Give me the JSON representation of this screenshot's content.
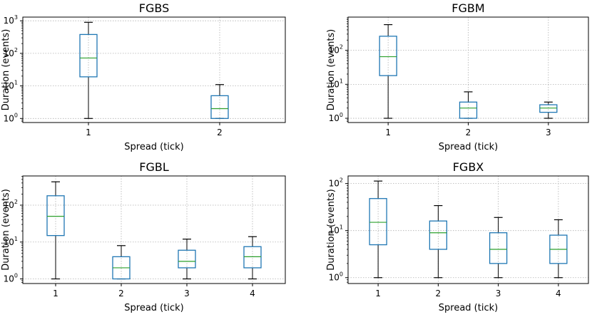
{
  "chart_data": [
    {
      "type": "box",
      "title": "FGBS",
      "xlabel": "Spread (tick)",
      "ylabel": "Duration (events)",
      "yscale": "log",
      "ylim": [
        0.75,
        1300
      ],
      "yticks": [
        1,
        10,
        100,
        1000
      ],
      "ytick_labels": [
        [
          "10",
          "0"
        ],
        [
          "10",
          "1"
        ],
        [
          "10",
          "2"
        ],
        [
          "10",
          "3"
        ]
      ],
      "categories": [
        "1",
        "2"
      ],
      "boxes": [
        {
          "whislo": 1,
          "q1": 19,
          "med": 72,
          "q3": 380,
          "whishi": 900
        },
        {
          "whislo": 1,
          "q1": 1,
          "med": 2,
          "q3": 5,
          "whishi": 11
        }
      ],
      "grid": true,
      "box_color": "#1f77b4",
      "median_color": "#2ca02c"
    },
    {
      "type": "box",
      "title": "FGBM",
      "xlabel": "Spread (tick)",
      "ylabel": "Duration (events)",
      "yscale": "log",
      "ylim": [
        0.75,
        950
      ],
      "yticks": [
        1,
        10,
        100
      ],
      "ytick_labels": [
        [
          "10",
          "0"
        ],
        [
          "10",
          "1"
        ],
        [
          "10",
          "2"
        ]
      ],
      "categories": [
        "1",
        "2",
        "3"
      ],
      "boxes": [
        {
          "whislo": 1,
          "q1": 18,
          "med": 65,
          "q3": 260,
          "whishi": 570
        },
        {
          "whislo": 1,
          "q1": 1,
          "med": 2,
          "q3": 3,
          "whishi": 6
        },
        {
          "whislo": 1,
          "q1": 1.5,
          "med": 2,
          "q3": 2.5,
          "whishi": 3
        }
      ],
      "grid": true,
      "box_color": "#1f77b4",
      "median_color": "#2ca02c"
    },
    {
      "type": "box",
      "title": "FGBL",
      "xlabel": "Spread (tick)",
      "ylabel": "Duration (events)",
      "yscale": "log",
      "ylim": [
        0.75,
        620
      ],
      "yticks": [
        1,
        10,
        100
      ],
      "ytick_labels": [
        [
          "10",
          "0"
        ],
        [
          "10",
          "1"
        ],
        [
          "10",
          "2"
        ]
      ],
      "categories": [
        "1",
        "2",
        "3",
        "4"
      ],
      "boxes": [
        {
          "whislo": 1,
          "q1": 15,
          "med": 50,
          "q3": 180,
          "whishi": 430
        },
        {
          "whislo": 1,
          "q1": 1,
          "med": 2,
          "q3": 4,
          "whishi": 8
        },
        {
          "whislo": 1,
          "q1": 2,
          "med": 3,
          "q3": 6,
          "whishi": 12
        },
        {
          "whislo": 1,
          "q1": 2,
          "med": 4,
          "q3": 7.5,
          "whishi": 14
        }
      ],
      "grid": true,
      "box_color": "#1f77b4",
      "median_color": "#2ca02c"
    },
    {
      "type": "box",
      "title": "FGBX",
      "xlabel": "Spread (tick)",
      "ylabel": "Duration (events)",
      "yscale": "log",
      "ylim": [
        0.75,
        145
      ],
      "yticks": [
        1,
        10,
        100
      ],
      "ytick_labels": [
        [
          "10",
          "0"
        ],
        [
          "10",
          "1"
        ],
        [
          "10",
          "2"
        ]
      ],
      "categories": [
        "1",
        "2",
        "3",
        "4"
      ],
      "boxes": [
        {
          "whislo": 1,
          "q1": 5,
          "med": 15,
          "q3": 48,
          "whishi": 113
        },
        {
          "whislo": 1,
          "q1": 4,
          "med": 9,
          "q3": 16,
          "whishi": 34
        },
        {
          "whislo": 1,
          "q1": 2,
          "med": 4,
          "q3": 9,
          "whishi": 19
        },
        {
          "whislo": 1,
          "q1": 2,
          "med": 4,
          "q3": 8,
          "whishi": 17
        }
      ],
      "grid": true,
      "box_color": "#1f77b4",
      "median_color": "#2ca02c"
    }
  ]
}
